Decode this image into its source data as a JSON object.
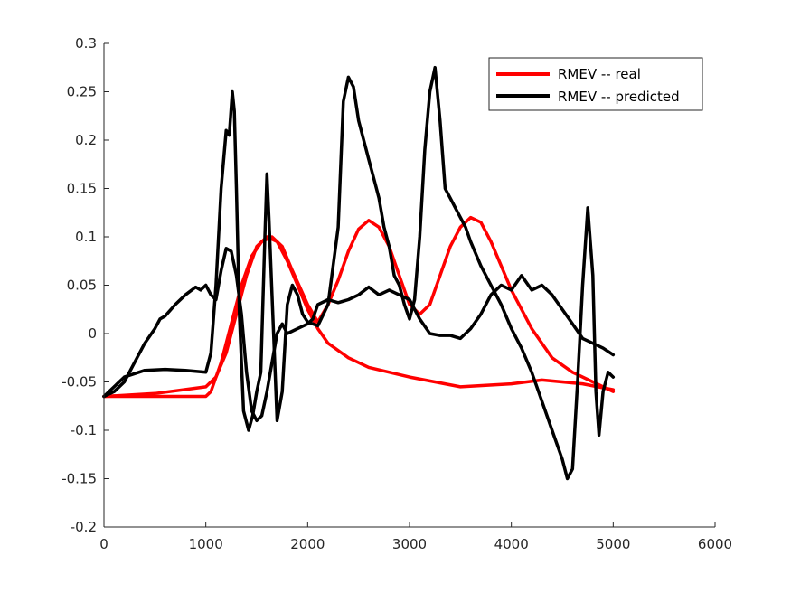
{
  "chart_data": {
    "type": "line",
    "title": "",
    "xlabel": "",
    "ylabel": "",
    "xlim": [
      0,
      6000
    ],
    "ylim": [
      -0.2,
      0.3
    ],
    "xticks": [
      0,
      1000,
      2000,
      3000,
      4000,
      5000,
      6000
    ],
    "yticks": [
      -0.2,
      -0.15,
      -0.1,
      -0.05,
      0,
      0.05,
      0.1,
      0.15,
      0.2,
      0.25,
      0.3
    ],
    "xtick_labels": [
      "0",
      "1000",
      "2000",
      "3000",
      "4000",
      "5000",
      "6000"
    ],
    "ytick_labels": [
      "-0.2",
      "-0.15",
      "-0.1",
      "-0.05",
      "0",
      "0.05",
      "0.1",
      "0.15",
      "0.2",
      "0.25",
      "0.3"
    ],
    "grid": false,
    "legend_position": "top-right",
    "legend": [
      "RMEV -- real",
      "RMEV -- predicted"
    ],
    "series": [
      {
        "name": "RMEV -- real",
        "color": "#ff0000",
        "x": [
          0,
          500,
          1000,
          1100,
          1200,
          1300,
          1400,
          1500,
          1600,
          1700,
          1800,
          1900,
          2000,
          2100,
          2200,
          2400,
          2600,
          3000,
          3500,
          4000,
          4300,
          4700,
          5000
        ],
        "y": [
          -0.065,
          -0.062,
          -0.055,
          -0.045,
          -0.02,
          0.02,
          0.06,
          0.09,
          0.1,
          0.095,
          0.075,
          0.05,
          0.025,
          0.005,
          -0.01,
          -0.025,
          -0.035,
          -0.045,
          -0.055,
          -0.052,
          -0.048,
          -0.052,
          -0.058
        ]
      },
      {
        "name": "RMEV -- real",
        "color": "#ff0000",
        "x": [
          0,
          1000,
          1050,
          1150,
          1250,
          1350,
          1450,
          1550,
          1650,
          1750,
          1850,
          2000,
          2100,
          2200,
          2300,
          2400,
          2500,
          2600,
          2700,
          2800,
          2900,
          3000,
          3100,
          3200,
          3300,
          3400,
          3500,
          3600,
          3700,
          3800,
          3900,
          4000,
          4200,
          4400,
          4600,
          4800,
          5000
        ],
        "y": [
          -0.065,
          -0.065,
          -0.06,
          -0.03,
          0.01,
          0.05,
          0.08,
          0.095,
          0.1,
          0.09,
          0.065,
          0.03,
          0.012,
          0.03,
          0.055,
          0.085,
          0.108,
          0.117,
          0.11,
          0.09,
          0.06,
          0.03,
          0.02,
          0.03,
          0.06,
          0.09,
          0.11,
          0.12,
          0.115,
          0.095,
          0.07,
          0.045,
          0.005,
          -0.025,
          -0.04,
          -0.05,
          -0.06
        ]
      },
      {
        "name": "RMEV -- predicted",
        "color": "#000000",
        "x": [
          0,
          100,
          200,
          300,
          400,
          500,
          550,
          600,
          700,
          800,
          900,
          950,
          1000,
          1050,
          1100,
          1150,
          1200,
          1250,
          1300,
          1350,
          1400,
          1450,
          1500,
          1550,
          1600,
          1650,
          1700,
          1750,
          1800,
          1900,
          2000,
          2050,
          2100,
          2200,
          2300,
          2400,
          2500,
          2600,
          2700,
          2800,
          2900,
          3000,
          3100,
          3200,
          3300,
          3400,
          3500,
          3600,
          3700,
          3800,
          3900,
          4000,
          4100,
          4200,
          4300,
          4400,
          4500,
          4600,
          4700,
          4800,
          4900,
          5000
        ],
        "y": [
          -0.065,
          -0.06,
          -0.05,
          -0.03,
          -0.01,
          0.005,
          0.015,
          0.018,
          0.03,
          0.04,
          0.048,
          0.045,
          0.05,
          0.04,
          0.035,
          0.065,
          0.088,
          0.085,
          0.06,
          0.02,
          -0.04,
          -0.08,
          -0.09,
          -0.085,
          -0.06,
          -0.03,
          0.0,
          0.01,
          0.0,
          0.005,
          0.01,
          0.015,
          0.03,
          0.035,
          0.032,
          0.035,
          0.04,
          0.048,
          0.04,
          0.045,
          0.04,
          0.035,
          0.015,
          0.0,
          -0.002,
          -0.002,
          -0.005,
          0.005,
          0.02,
          0.04,
          0.05,
          0.045,
          0.06,
          0.045,
          0.05,
          0.04,
          0.025,
          0.01,
          -0.005,
          -0.01,
          -0.015,
          -0.022
        ]
      },
      {
        "name": "RMEV -- predicted",
        "color": "#000000",
        "x": [
          0,
          200,
          400,
          600,
          800,
          1000,
          1050,
          1100,
          1150,
          1200,
          1230,
          1260,
          1280,
          1300,
          1330,
          1370,
          1420,
          1460,
          1500,
          1540,
          1580,
          1600,
          1620,
          1650,
          1700,
          1750,
          1800,
          1850,
          1900,
          1950,
          2000,
          2100,
          2200,
          2300,
          2350,
          2400,
          2450,
          2500,
          2550,
          2600,
          2650,
          2700,
          2750,
          2800,
          2850,
          2900,
          2950,
          3000,
          3050,
          3100,
          3150,
          3200,
          3250,
          3300,
          3350,
          3400,
          3450,
          3500,
          3550,
          3600,
          3700,
          3800,
          3900,
          4000,
          4100,
          4200,
          4300,
          4400,
          4500,
          4550,
          4600,
          4650,
          4700,
          4750,
          4800,
          4830,
          4860,
          4900,
          4950,
          5000
        ],
        "y": [
          -0.065,
          -0.045,
          -0.038,
          -0.037,
          -0.038,
          -0.04,
          -0.02,
          0.05,
          0.15,
          0.21,
          0.205,
          0.25,
          0.23,
          0.15,
          0.02,
          -0.08,
          -0.1,
          -0.085,
          -0.06,
          -0.04,
          0.1,
          0.165,
          0.12,
          0.04,
          -0.09,
          -0.06,
          0.03,
          0.05,
          0.04,
          0.02,
          0.012,
          0.008,
          0.03,
          0.11,
          0.24,
          0.265,
          0.255,
          0.22,
          0.2,
          0.18,
          0.16,
          0.14,
          0.11,
          0.09,
          0.06,
          0.05,
          0.03,
          0.015,
          0.035,
          0.1,
          0.19,
          0.25,
          0.275,
          0.22,
          0.15,
          0.14,
          0.13,
          0.12,
          0.11,
          0.095,
          0.07,
          0.05,
          0.03,
          0.005,
          -0.015,
          -0.04,
          -0.07,
          -0.1,
          -0.13,
          -0.15,
          -0.14,
          -0.05,
          0.05,
          0.13,
          0.06,
          -0.06,
          -0.105,
          -0.06,
          -0.04,
          -0.045
        ]
      }
    ]
  }
}
